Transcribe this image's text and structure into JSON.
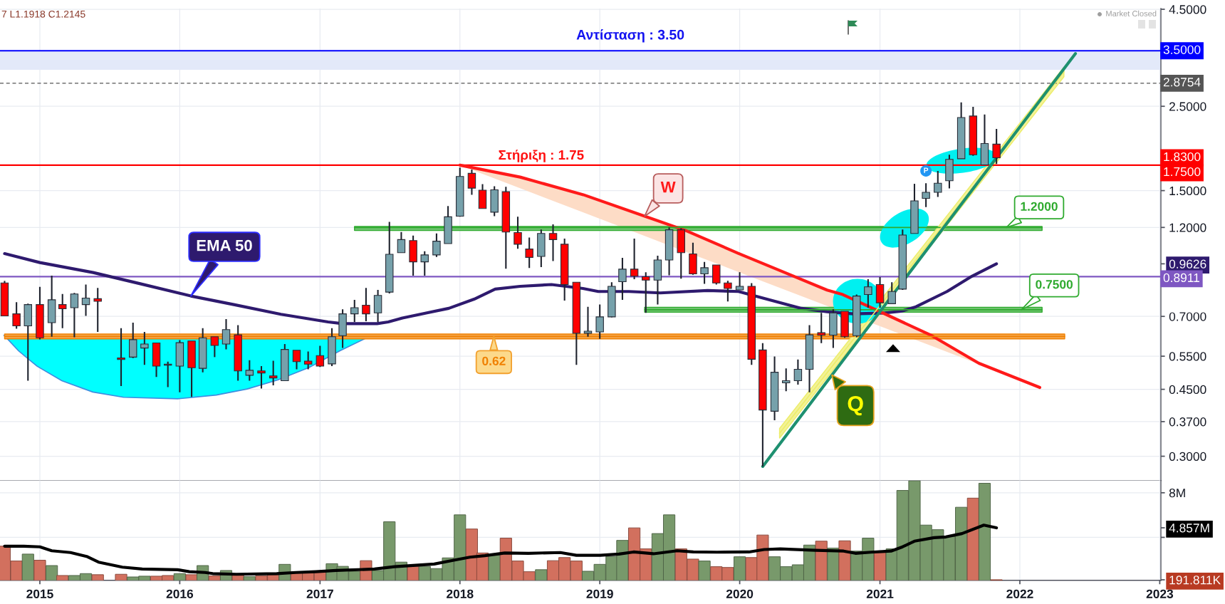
{
  "chart_data": [
    {
      "type": "candlestick",
      "x": [
        "2014-10",
        "2014-11",
        "2014-12",
        "2015-01",
        "2015-02",
        "2015-03",
        "2015-04",
        "2015-05",
        "2015-06",
        "2015-08",
        "2015-09",
        "2015-10",
        "2015-11",
        "2015-12",
        "2016-01",
        "2016-02",
        "2016-03",
        "2016-04",
        "2016-05",
        "2016-06",
        "2016-07",
        "2016-08",
        "2016-09",
        "2016-10",
        "2016-11",
        "2016-12",
        "2017-01",
        "2017-02",
        "2017-03",
        "2017-04",
        "2017-05",
        "2017-06",
        "2017-07",
        "2017-08",
        "2017-09",
        "2017-10",
        "2017-11",
        "2017-12",
        "2018-01",
        "2018-02",
        "2018-03",
        "2018-04",
        "2018-05",
        "2018-06",
        "2018-07",
        "2018-08",
        "2018-09",
        "2018-10",
        "2018-11",
        "2018-12",
        "2019-01",
        "2019-02",
        "2019-03",
        "2019-04",
        "2019-05",
        "2019-06",
        "2019-07",
        "2019-08",
        "2019-09",
        "2019-10",
        "2019-11",
        "2019-12",
        "2020-01",
        "2020-02",
        "2020-03",
        "2020-04",
        "2020-05",
        "2020-06",
        "2020-07",
        "2020-08",
        "2020-09",
        "2020-10",
        "2020-11",
        "2020-12",
        "2021-01",
        "2021-02",
        "2021-03",
        "2021-04",
        "2021-05",
        "2021-06",
        "2021-07",
        "2021-08",
        "2021-09",
        "2021-10",
        "2021-11"
      ],
      "ohlc": [
        [
          0.857,
          0.868,
          0.702,
          0.702
        ],
        [
          0.711,
          0.763,
          0.65,
          0.661
        ],
        [
          0.661,
          0.756,
          0.474,
          0.752
        ],
        [
          0.752,
          0.837,
          0.609,
          0.615
        ],
        [
          0.674,
          0.896,
          0.619,
          0.774
        ],
        [
          0.752,
          0.802,
          0.652,
          0.733
        ],
        [
          0.738,
          0.807,
          0.617,
          0.802
        ],
        [
          0.752,
          0.849,
          0.702,
          0.782
        ],
        [
          0.779,
          0.832,
          0.637,
          0.767
        ],
        [
          0.544,
          0.652,
          0.459,
          0.539
        ],
        [
          0.547,
          0.674,
          0.544,
          0.608
        ],
        [
          0.578,
          0.637,
          0.522,
          0.592
        ],
        [
          0.596,
          0.596,
          0.485,
          0.518
        ],
        [
          0.524,
          0.532,
          0.456,
          0.521
        ],
        [
          0.518,
          0.606,
          0.442,
          0.597
        ],
        [
          0.603,
          0.603,
          0.43,
          0.513
        ],
        [
          0.511,
          0.652,
          0.499,
          0.615
        ],
        [
          0.619,
          0.619,
          0.547,
          0.587
        ],
        [
          0.592,
          0.689,
          0.573,
          0.646
        ],
        [
          0.626,
          0.664,
          0.474,
          0.503
        ],
        [
          0.49,
          0.537,
          0.474,
          0.505
        ],
        [
          0.503,
          0.518,
          0.452,
          0.497
        ],
        [
          0.488,
          0.535,
          0.461,
          0.482
        ],
        [
          0.474,
          0.592,
          0.474,
          0.573
        ],
        [
          0.57,
          0.57,
          0.508,
          0.532
        ],
        [
          0.534,
          0.566,
          0.508,
          0.524
        ],
        [
          0.552,
          0.586,
          0.515,
          0.518
        ],
        [
          0.525,
          0.652,
          0.518,
          0.619
        ],
        [
          0.623,
          0.731,
          0.578,
          0.711
        ],
        [
          0.711,
          0.774,
          0.677,
          0.738
        ],
        [
          0.749,
          0.832,
          0.68,
          0.711
        ],
        [
          0.715,
          0.822,
          0.677,
          0.795
        ],
        [
          0.811,
          1.241,
          0.804,
          1.02
        ],
        [
          1.03,
          1.167,
          1.03,
          1.115
        ],
        [
          1.108,
          1.142,
          0.896,
          0.974
        ],
        [
          0.974,
          1.039,
          0.896,
          1.016
        ],
        [
          1.016,
          1.157,
          1.003,
          1.104
        ],
        [
          1.088,
          1.366,
          1.088,
          1.28
        ],
        [
          1.285,
          1.725,
          1.28,
          1.634
        ],
        [
          1.665,
          1.705,
          1.463,
          1.523
        ],
        [
          1.504,
          1.56,
          1.346,
          1.346
        ],
        [
          1.316,
          1.54,
          1.285,
          1.507
        ],
        [
          1.49,
          1.535,
          0.935,
          1.167
        ],
        [
          1.163,
          1.28,
          1.055,
          1.084
        ],
        [
          1.053,
          1.129,
          0.939,
          1.001
        ],
        [
          1.007,
          1.185,
          0.944,
          1.157
        ],
        [
          1.157,
          1.223,
          0.979,
          1.115
        ],
        [
          1.084,
          1.121,
          0.77,
          0.849
        ],
        [
          0.861,
          0.861,
          0.522,
          0.632
        ],
        [
          0.632,
          0.742,
          0.619,
          0.64
        ],
        [
          0.637,
          0.752,
          0.611,
          0.698
        ],
        [
          0.698,
          0.861,
          0.696,
          0.84
        ],
        [
          0.864,
          0.998,
          0.774,
          0.932
        ],
        [
          0.932,
          1.121,
          0.877,
          0.893
        ],
        [
          0.89,
          0.915,
          0.715,
          0.872
        ],
        [
          0.872,
          1.011,
          0.752,
          0.985
        ],
        [
          0.985,
          1.2,
          0.898,
          1.183
        ],
        [
          1.183,
          1.194,
          0.88,
          1.03
        ],
        [
          1.022,
          1.094,
          0.901,
          0.906
        ],
        [
          0.906,
          0.974,
          0.853,
          0.94
        ],
        [
          0.956,
          0.956,
          0.849,
          0.857
        ],
        [
          0.857,
          0.868,
          0.766,
          0.829
        ],
        [
          0.822,
          0.915,
          0.822,
          0.84
        ],
        [
          0.84,
          0.856,
          0.522,
          0.54
        ],
        [
          0.571,
          0.595,
          0.282,
          0.397
        ],
        [
          0.394,
          0.549,
          0.373,
          0.499
        ],
        [
          0.468,
          0.511,
          0.445,
          0.474
        ],
        [
          0.474,
          0.539,
          0.463,
          0.508
        ],
        [
          0.508,
          0.664,
          0.442,
          0.626
        ],
        [
          0.634,
          0.715,
          0.595,
          0.625
        ],
        [
          0.625,
          0.731,
          0.578,
          0.715
        ],
        [
          0.722,
          0.722,
          0.615,
          0.619
        ],
        [
          0.623,
          0.799,
          0.617,
          0.792
        ],
        [
          0.799,
          0.877,
          0.738,
          0.837
        ],
        [
          0.849,
          0.888,
          0.738,
          0.76
        ],
        [
          0.756,
          0.861,
          0.756,
          0.814
        ],
        [
          0.826,
          1.185,
          0.822,
          1.146
        ],
        [
          1.157,
          1.563,
          1.157,
          1.41
        ],
        [
          1.431,
          1.569,
          1.358,
          1.485
        ],
        [
          1.485,
          1.69,
          1.444,
          1.569
        ],
        [
          1.592,
          1.864,
          1.521,
          1.812
        ],
        [
          1.819,
          2.561,
          1.819,
          2.335
        ],
        [
          2.357,
          2.491,
          1.853,
          1.864
        ],
        [
          1.753,
          2.378,
          1.753,
          1.995
        ],
        [
          1.988,
          2.18,
          1.763,
          1.83
        ]
      ],
      "colors": [
        "#ff0000",
        "#ff0000",
        "#76a1ab",
        "#ff0000",
        "#76a1ab",
        "#ff0000",
        "#76a1ab",
        "#76a1ab",
        "#ff0000",
        "#ff0000",
        "#76a1ab",
        "#76a1ab",
        "#ff0000",
        "#ff0000",
        "#76a1ab",
        "#ff0000",
        "#76a1ab",
        "#ff0000",
        "#76a1ab",
        "#ff0000",
        "#76a1ab",
        "#ff0000",
        "#ff0000",
        "#76a1ab",
        "#ff0000",
        "#ff0000",
        "#ff0000",
        "#76a1ab",
        "#76a1ab",
        "#76a1ab",
        "#ff0000",
        "#76a1ab",
        "#76a1ab",
        "#76a1ab",
        "#ff0000",
        "#76a1ab",
        "#76a1ab",
        "#76a1ab",
        "#76a1ab",
        "#ff0000",
        "#ff0000",
        "#76a1ab",
        "#ff0000",
        "#ff0000",
        "#ff0000",
        "#76a1ab",
        "#ff0000",
        "#ff0000",
        "#ff0000",
        "#76a1ab",
        "#76a1ab",
        "#76a1ab",
        "#76a1ab",
        "#ff0000",
        "#ff0000",
        "#76a1ab",
        "#76a1ab",
        "#ff0000",
        "#ff0000",
        "#76a1ab",
        "#ff0000",
        "#ff0000",
        "#76a1ab",
        "#ff0000",
        "#ff0000",
        "#76a1ab",
        "#76a1ab",
        "#76a1ab",
        "#76a1ab",
        "#ff0000",
        "#76a1ab",
        "#ff0000",
        "#76a1ab",
        "#76a1ab",
        "#ff0000",
        "#76a1ab",
        "#76a1ab",
        "#76a1ab",
        "#76a1ab",
        "#76a1ab",
        "#76a1ab",
        "#76a1ab",
        "#ff0000",
        "#76a1ab",
        "#ff0000"
      ],
      "value_labels": [
        null,
        null,
        null,
        null,
        null,
        null,
        null,
        null,
        null,
        null,
        null,
        null,
        null,
        null,
        null,
        null,
        null,
        null,
        null,
        null,
        null,
        null,
        null,
        null,
        null,
        null,
        null,
        null,
        null,
        null,
        null,
        null,
        null,
        null,
        null,
        null,
        null,
        null,
        null,
        null,
        null,
        null,
        null,
        null,
        null,
        null,
        null,
        null,
        null,
        null,
        null,
        null,
        null,
        null,
        null,
        null,
        null,
        null,
        null,
        null,
        null,
        null,
        null,
        null,
        null,
        null,
        null,
        null,
        null,
        null,
        null,
        null,
        null,
        null,
        null,
        null,
        null,
        null,
        null,
        null,
        null,
        null,
        null,
        null,
        "1.8300"
      ],
      "xlim": [
        "2014-09-19",
        "2023-01-04"
      ],
      "xticks": [
        "2015",
        "2016",
        "2017",
        "2018",
        "2019",
        "2020",
        "2021",
        "2022",
        "2023"
      ],
      "ylim": [
        0.259,
        4.52
      ],
      "yticks": [
        {
          "value": 0.3,
          "label": "0.3000"
        },
        {
          "value": 0.37,
          "label": "0.3700"
        },
        {
          "value": 0.45,
          "label": "0.4500"
        },
        {
          "value": 0.55,
          "label": "0.5500"
        },
        {
          "value": 0.7,
          "label": "0.7000"
        },
        {
          "value": 0.9626,
          "label": "0.9626"
        },
        {
          "value": 1.2,
          "label": "1.2000"
        },
        {
          "value": 1.5,
          "label": "1.5000"
        },
        {
          "value": 2.5,
          "label": "2.5000"
        },
        {
          "value": 4.5,
          "label": "4.5000"
        }
      ],
      "log": true,
      "grid": true,
      "tick_labels": "y",
      "series": [
        {
          "type": "line",
          "name": "EMA 50",
          "color": "#2e1a6e",
          "x": [
            "2014-10-01",
            "2015-01-01",
            "2015-05-20",
            "2015-09-20",
            "2016-01-30",
            "2016-05-21",
            "2016-09-21",
            "2017-01-22",
            "2017-03-01",
            "2017-05-30",
            "2017-06-28",
            "2017-08-04",
            "2017-10-07",
            "2017-12-03",
            "2018-02-07",
            "2018-04-03",
            "2018-06-07",
            "2018-08-28",
            "2018-11-18",
            "2018-12-28",
            "2019-03-18",
            "2019-06-08",
            "2019-10-09",
            "2019-12-29",
            "2020-03-19",
            "2020-06-10",
            "2020-08-16",
            "2020-10-24",
            "2021-01-15",
            "2021-02-25",
            "2021-04-05",
            "2021-06-25",
            "2021-08-29",
            "2021-11-01"
          ],
          "values": [
            1.024,
            0.97,
            0.913,
            0.853,
            0.792,
            0.752,
            0.709,
            0.677,
            0.67,
            0.67,
            0.677,
            0.693,
            0.715,
            0.735,
            0.777,
            0.826,
            0.84,
            0.849,
            0.829,
            0.814,
            0.814,
            0.807,
            0.819,
            0.814,
            0.774,
            0.735,
            0.72,
            0.711,
            0.715,
            0.722,
            0.742,
            0.814,
            0.893,
            0.9626
          ]
        },
        {
          "type": "line",
          "name": "W",
          "color": "#ff1a1a",
          "x": [
            "2018-01-01",
            "2018-06-07",
            "2018-11-19",
            "2019-04-28",
            "2019-08-13",
            "2019-12-28",
            "2020-05-01",
            "2020-08-16",
            "2020-09-26",
            "2021-01-16",
            "2021-05-16",
            "2021-09-16",
            "2022-02-22"
          ],
          "values": [
            1.75,
            1.628,
            1.463,
            1.285,
            1.178,
            1.026,
            0.91,
            0.821,
            0.799,
            0.709,
            0.623,
            0.527,
            0.455
          ]
        },
        {
          "type": "line",
          "name": "0.62",
          "color": "#f08000",
          "x": [
            "2014-10-01",
            "2022-04-28"
          ],
          "values": [
            0.62,
            0.62
          ],
          "lower": [
            0.611,
            0.611
          ],
          "upper": [
            0.629,
            0.629
          ]
        },
        {
          "type": "line",
          "name": "1.2000",
          "color": "#2faa2f",
          "x": [
            "2017-04-01",
            "2022-02-28"
          ],
          "values": [
            1.2,
            1.2
          ],
          "lower": [
            1.178,
            1.178
          ],
          "upper": [
            1.207,
            1.207
          ]
        },
        {
          "type": "line",
          "name": "0.7500",
          "color": "#2faa2f",
          "x": [
            "2019-04-28",
            "2022-02-28"
          ],
          "values": [
            0.729,
            0.729
          ],
          "lower": [
            0.718,
            0.718
          ],
          "upper": [
            0.74,
            0.74
          ]
        },
        {
          "type": "line",
          "color": "#eded6a",
          "x": [
            "2020-04-14",
            "2022-04-26"
          ],
          "values": [
            0.345,
            3.08
          ],
          "lower": [
            0.335,
            2.99
          ],
          "upper": [
            0.355,
            3.17
          ]
        },
        {
          "type": "line",
          "name": "Q",
          "color": "#1e9070",
          "x": [
            "2020-03-01",
            "2022-05-26"
          ],
          "values": [
            0.282,
            3.44
          ]
        }
      ],
      "ref_lines": [
        {
          "axis": "y",
          "value": 3.5,
          "label": "3.5000",
          "color": "#0000ff"
        },
        {
          "axis": "y",
          "value": 2.8754,
          "label": "2.8754",
          "color": "#555555",
          "line_style": "dashed"
        },
        {
          "axis": "y",
          "value": 1.75,
          "label": "1.7500",
          "color": "#ff0000"
        },
        {
          "axis": "y",
          "value": 0.8911,
          "label": "0.8911",
          "color": "#7e57c2"
        }
      ],
      "bands": [
        {
          "axis": "y",
          "from": 3.12,
          "to": 3.5,
          "label": "Αντίσταση : 3.50",
          "color": "#e3e9f9"
        }
      ],
      "annotations": [
        "7 L1.1918 C1.2145",
        "Market Closed",
        {
          "text": "Στήριξη : 1.75",
          "x": "2018-08-01",
          "y": 1.75
        },
        {
          "text": "P",
          "x": "2021-05-01",
          "y": 1.69
        }
      ]
    },
    {
      "type": "bar",
      "x": [
        "2014-10",
        "2014-11",
        "2014-12",
        "2015-01",
        "2015-02",
        "2015-03",
        "2015-04",
        "2015-05",
        "2015-06",
        "2015-08",
        "2015-09",
        "2015-10",
        "2015-11",
        "2015-12",
        "2016-01",
        "2016-02",
        "2016-03",
        "2016-04",
        "2016-05",
        "2016-06",
        "2016-07",
        "2016-08",
        "2016-09",
        "2016-10",
        "2016-11",
        "2016-12",
        "2017-01",
        "2017-02",
        "2017-03",
        "2017-04",
        "2017-05",
        "2017-06",
        "2017-07",
        "2017-08",
        "2017-09",
        "2017-10",
        "2017-11",
        "2017-12",
        "2018-01",
        "2018-02",
        "2018-03",
        "2018-04",
        "2018-05",
        "2018-06",
        "2018-07",
        "2018-08",
        "2018-09",
        "2018-10",
        "2018-11",
        "2018-12",
        "2019-01",
        "2019-02",
        "2019-03",
        "2019-04",
        "2019-05",
        "2019-06",
        "2019-07",
        "2019-08",
        "2019-09",
        "2019-10",
        "2019-11",
        "2019-12",
        "2020-01",
        "2020-02",
        "2020-03",
        "2020-04",
        "2020-05",
        "2020-06",
        "2020-07",
        "2020-08",
        "2020-09",
        "2020-10",
        "2020-11",
        "2020-12",
        "2021-01",
        "2021-02",
        "2021-03",
        "2021-04",
        "2021-05",
        "2021-06",
        "2021-07",
        "2021-08",
        "2021-09",
        "2021-10",
        "2021-11"
      ],
      "series": [
        {
          "type": "bar",
          "values": [
            3210000,
            1880000,
            2500000,
            1950000,
            1470000,
            580000,
            580000,
            750000,
            650000,
            690000,
            450000,
            520000,
            520000,
            580000,
            750000,
            650000,
            1470000,
            550000,
            1030000,
            650000,
            480000,
            550000,
            650000,
            1580000,
            820000,
            820000,
            960000,
            1640000,
            1400000,
            960000,
            1910000,
            1030000,
            5400000,
            1780000,
            1400000,
            1400000,
            1200000,
            2160000,
            6020000,
            4750000,
            2600000,
            2390000,
            3930000,
            1880000,
            920000,
            1100000,
            1910000,
            2190000,
            1880000,
            960000,
            1580000,
            2290000,
            3730000,
            4850000,
            2970000,
            4340000,
            6020000,
            2970000,
            2050000,
            1880000,
            1370000,
            1300000,
            2260000,
            2190000,
            4210000,
            2260000,
            1370000,
            1540000,
            3310000,
            3660000,
            3040000,
            3690000,
            2770000,
            3930000,
            2640000,
            2970000,
            8210000,
            9080000,
            5100000,
            4690000,
            4070000,
            6700000,
            7520000,
            8850000,
            191811
          ],
          "colors": [
            "#d2705e",
            "#d2705e",
            "#78996b",
            "#d2705e",
            "#78996b",
            "#d2705e",
            "#78996b",
            "#78996b",
            "#d2705e",
            "#d2705e",
            "#78996b",
            "#78996b",
            "#d2705e",
            "#d2705e",
            "#78996b",
            "#d2705e",
            "#78996b",
            "#d2705e",
            "#78996b",
            "#d2705e",
            "#78996b",
            "#d2705e",
            "#d2705e",
            "#78996b",
            "#d2705e",
            "#d2705e",
            "#d2705e",
            "#78996b",
            "#78996b",
            "#78996b",
            "#d2705e",
            "#78996b",
            "#78996b",
            "#78996b",
            "#d2705e",
            "#78996b",
            "#78996b",
            "#78996b",
            "#78996b",
            "#d2705e",
            "#d2705e",
            "#78996b",
            "#d2705e",
            "#d2705e",
            "#d2705e",
            "#78996b",
            "#d2705e",
            "#d2705e",
            "#d2705e",
            "#78996b",
            "#78996b",
            "#78996b",
            "#78996b",
            "#d2705e",
            "#d2705e",
            "#78996b",
            "#78996b",
            "#d2705e",
            "#d2705e",
            "#78996b",
            "#d2705e",
            "#d2705e",
            "#78996b",
            "#d2705e",
            "#d2705e",
            "#78996b",
            "#78996b",
            "#78996b",
            "#78996b",
            "#d2705e",
            "#78996b",
            "#d2705e",
            "#78996b",
            "#78996b",
            "#d2705e",
            "#78996b",
            "#78996b",
            "#78996b",
            "#78996b",
            "#78996b",
            "#78996b",
            "#78996b",
            "#d2705e",
            "#78996b",
            "#b83a22"
          ]
        },
        {
          "type": "line",
          "color": "#000000",
          "x": [
            "2014-10-01",
            "2014-11-20",
            "2015-01-01",
            "2015-02-01",
            "2015-03-22",
            "2015-05-03",
            "2015-06-03",
            "2015-08-04",
            "2015-09-25",
            "2015-12-26",
            "2016-01-26",
            "2016-03-07",
            "2016-03-27",
            "2016-05-28",
            "2016-09-10",
            "2016-10-30",
            "2016-12-21",
            "2017-02-12",
            "2017-05-23",
            "2017-07-14",
            "2017-10-26",
            "2017-12-16",
            "2018-01-27",
            "2018-03-07",
            "2018-04-28",
            "2018-06-29",
            "2018-09-20",
            "2018-11-01",
            "2019-01-02",
            "2019-02-20",
            "2019-03-30",
            "2019-05-21",
            "2019-07-22",
            "2019-09-02",
            "2019-11-03",
            "2020-01-25",
            "2020-03-05",
            "2020-04-16",
            "2020-07-17",
            "2020-09-28",
            "2020-10-29",
            "2020-12-09",
            "2021-01-30",
            "2021-03-01",
            "2021-04-01",
            "2021-05-22",
            "2021-06-22",
            "2021-08-03",
            "2021-09-29",
            "2021-11-01"
          ],
          "values": [
            3210000,
            3210000,
            3150000,
            2800000,
            2640000,
            2290000,
            1780000,
            1330000,
            1160000,
            1100000,
            920000,
            850000,
            750000,
            690000,
            750000,
            850000,
            920000,
            1030000,
            1160000,
            1370000,
            1610000,
            1950000,
            2220000,
            2360000,
            2600000,
            2570000,
            2640000,
            2390000,
            2390000,
            2500000,
            2690000,
            2530000,
            2800000,
            2690000,
            2670000,
            2690000,
            2910000,
            2970000,
            2840000,
            2770000,
            2570000,
            2670000,
            2770000,
            3150000,
            3660000,
            3970000,
            4040000,
            4340000,
            5100000,
            4857000
          ]
        }
      ],
      "xlim": [
        "2014-09-19",
        "2023-01-04"
      ],
      "xticks": [
        "2015",
        "2016",
        "2017",
        "2018",
        "2019",
        "2020",
        "2021",
        "2022",
        "2023"
      ],
      "ylim": [
        150000,
        9100000
      ],
      "yticks": [
        {
          "value": 191811,
          "label": "191.811K"
        },
        {
          "value": 4000000,
          "label": null
        },
        {
          "value": 4857000,
          "label": "4.857M"
        },
        {
          "value": 8000000,
          "label": "8M"
        }
      ],
      "grid": true
    }
  ]
}
